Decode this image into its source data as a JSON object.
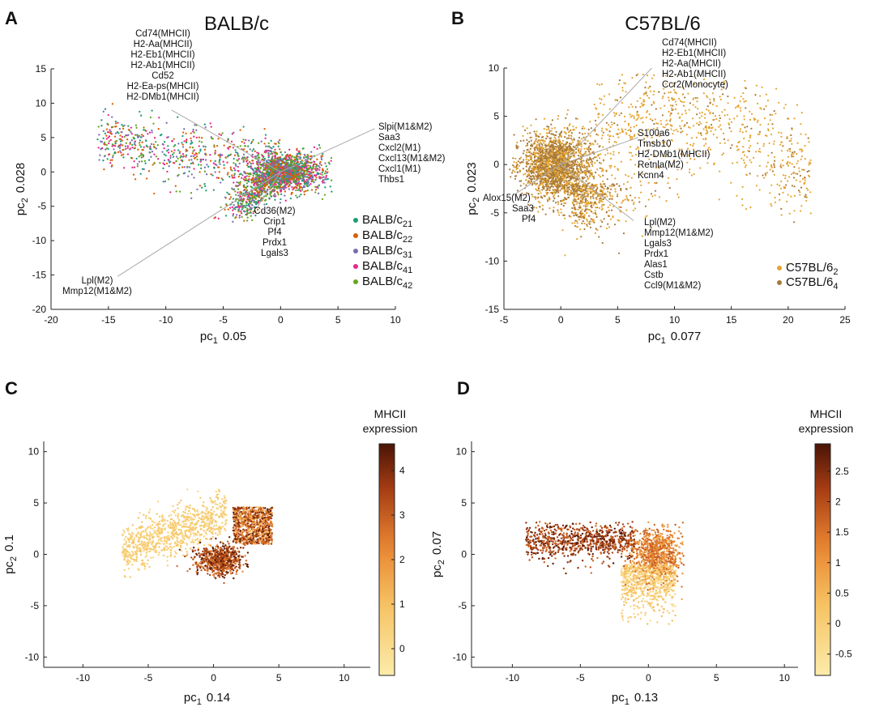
{
  "figure": {
    "panels": [
      {
        "id": "A",
        "title": "BALB/c",
        "xlabel": "pc",
        "xsub": "1",
        "xvar": "0.05",
        "ylabel": "pc",
        "ysub": "2",
        "yvar": "0.028"
      },
      {
        "id": "B",
        "title": "C57BL/6",
        "xlabel": "pc",
        "xsub": "1",
        "xvar": "0.077",
        "ylabel": "pc",
        "ysub": "2",
        "yvar": "0.023"
      },
      {
        "id": "C",
        "title": "",
        "xlabel": "pc",
        "xsub": "1",
        "xvar": "0.14",
        "ylabel": "pc",
        "ysub": "2",
        "yvar": "0.1",
        "colorbar_title": [
          "MHCII",
          "expression"
        ]
      },
      {
        "id": "D",
        "title": "",
        "xlabel": "pc",
        "xsub": "1",
        "xvar": "0.13",
        "ylabel": "pc",
        "ysub": "2",
        "yvar": "0.07",
        "colorbar_title": [
          "MHCII",
          "expression"
        ]
      }
    ]
  },
  "chart_data": [
    {
      "panel": "A",
      "type": "scatter",
      "title": "BALB/c",
      "xlabel": "pc1 0.05",
      "ylabel": "pc2 0.028",
      "xlim": [
        -20,
        10
      ],
      "ylim": [
        -20,
        15
      ],
      "xticks": [
        -20,
        -15,
        -10,
        -5,
        0,
        5,
        10
      ],
      "yticks": [
        -20,
        -15,
        -10,
        -5,
        0,
        5,
        10,
        15
      ],
      "series": [
        {
          "name": "BALB/c",
          "sub": "21",
          "color": "#1b9e77"
        },
        {
          "name": "BALB/c",
          "sub": "22",
          "color": "#d95f02"
        },
        {
          "name": "BALB/c",
          "sub": "31",
          "color": "#7570b3"
        },
        {
          "name": "BALB/c",
          "sub": "41",
          "color": "#e7298a"
        },
        {
          "name": "BALB/c",
          "sub": "42",
          "color": "#66a61e"
        }
      ],
      "loadings": [
        {
          "end": [
            -9.5,
            9.0
          ],
          "labels": [
            "Cd74(MHCII)",
            "H2-Aa(MHCII)",
            "H2-Eb1(MHCII)",
            "H2-Ab1(MHCII)",
            "Cd52",
            "H2-Ea-ps(MHCII)",
            "H2-DMb1(MHCII)"
          ]
        },
        {
          "end": [
            8.2,
            6.3
          ],
          "labels": [
            "Slpi(M1&M2)",
            "Saa3",
            "Cxcl2(M1)",
            "Cxcl13(M1&M2)",
            "Cxcl1(M1)",
            "Thbs1"
          ]
        },
        {
          "end": [
            -14.2,
            -15.2
          ],
          "labels": [
            "Lpl(M2)",
            "Mmp12(M1&M2)"
          ]
        },
        {
          "end": [
            -2.0,
            -5.0
          ],
          "labels": [
            "Cd36(M2)",
            "Crip1",
            "Pf4",
            "Prdx1",
            "Lgals3"
          ]
        }
      ]
    },
    {
      "panel": "B",
      "type": "scatter",
      "title": "C57BL/6",
      "xlabel": "pc1 0.077",
      "ylabel": "pc2 0.023",
      "xlim": [
        -5,
        25
      ],
      "ylim": [
        -15,
        10
      ],
      "xticks": [
        -5,
        0,
        5,
        10,
        15,
        20,
        25
      ],
      "yticks": [
        -15,
        -10,
        -5,
        0,
        5,
        10
      ],
      "series": [
        {
          "name": "C57BL/6",
          "sub": "2",
          "color": "#e6a532"
        },
        {
          "name": "C57BL/6",
          "sub": "4",
          "color": "#a87a3a"
        }
      ],
      "loadings": [
        {
          "end": [
            8.0,
            10.0
          ],
          "labels": [
            "Cd74(MHCII)",
            "H2-Eb1(MHCII)",
            "H2-Aa(MHCII)",
            "H2-Ab1(MHCII)",
            "Ccr2(Monocyte)"
          ]
        },
        {
          "end": [
            6.8,
            2.8
          ],
          "labels": [
            "S100a6",
            "Tmsb10",
            "H2-DMb1(MHCII)",
            "Retnla(M2)",
            "Kcnn4"
          ]
        },
        {
          "end": [
            -4.2,
            -3.2
          ],
          "labels": [
            "Alox15(M2)",
            "Saa3",
            "Pf4"
          ]
        },
        {
          "end": [
            6.4,
            -5.8
          ],
          "labels": [
            "Lpl(M2)",
            "Mmp12(M1&M2)",
            "Lgals3",
            "Prdx1",
            "Alas1",
            "Cstb",
            "Ccl9(M1&M2)"
          ]
        }
      ]
    },
    {
      "panel": "C",
      "type": "scatter",
      "colorbar": "MHCII expression",
      "xlabel": "pc1 0.14",
      "ylabel": "pc2 0.1",
      "xlim": [
        -13,
        12
      ],
      "ylim": [
        -11,
        11
      ],
      "xticks": [
        -10,
        -5,
        0,
        5,
        10
      ],
      "yticks": [
        -10,
        -5,
        0,
        5,
        10
      ],
      "clim": [
        -0.6,
        4.6
      ],
      "cticks": [
        0,
        1,
        2,
        3,
        4
      ]
    },
    {
      "panel": "D",
      "type": "scatter",
      "colorbar": "MHCII expression",
      "xlabel": "pc1 0.13",
      "ylabel": "pc2 0.07",
      "xlim": [
        -13,
        11
      ],
      "ylim": [
        -11,
        11
      ],
      "xticks": [
        -10,
        -5,
        0,
        5,
        10
      ],
      "yticks": [
        -10,
        -5,
        0,
        5,
        10
      ],
      "clim": [
        -0.85,
        2.95
      ],
      "cticks": [
        -0.5,
        0,
        0.5,
        1,
        1.5,
        2,
        2.5
      ]
    }
  ]
}
